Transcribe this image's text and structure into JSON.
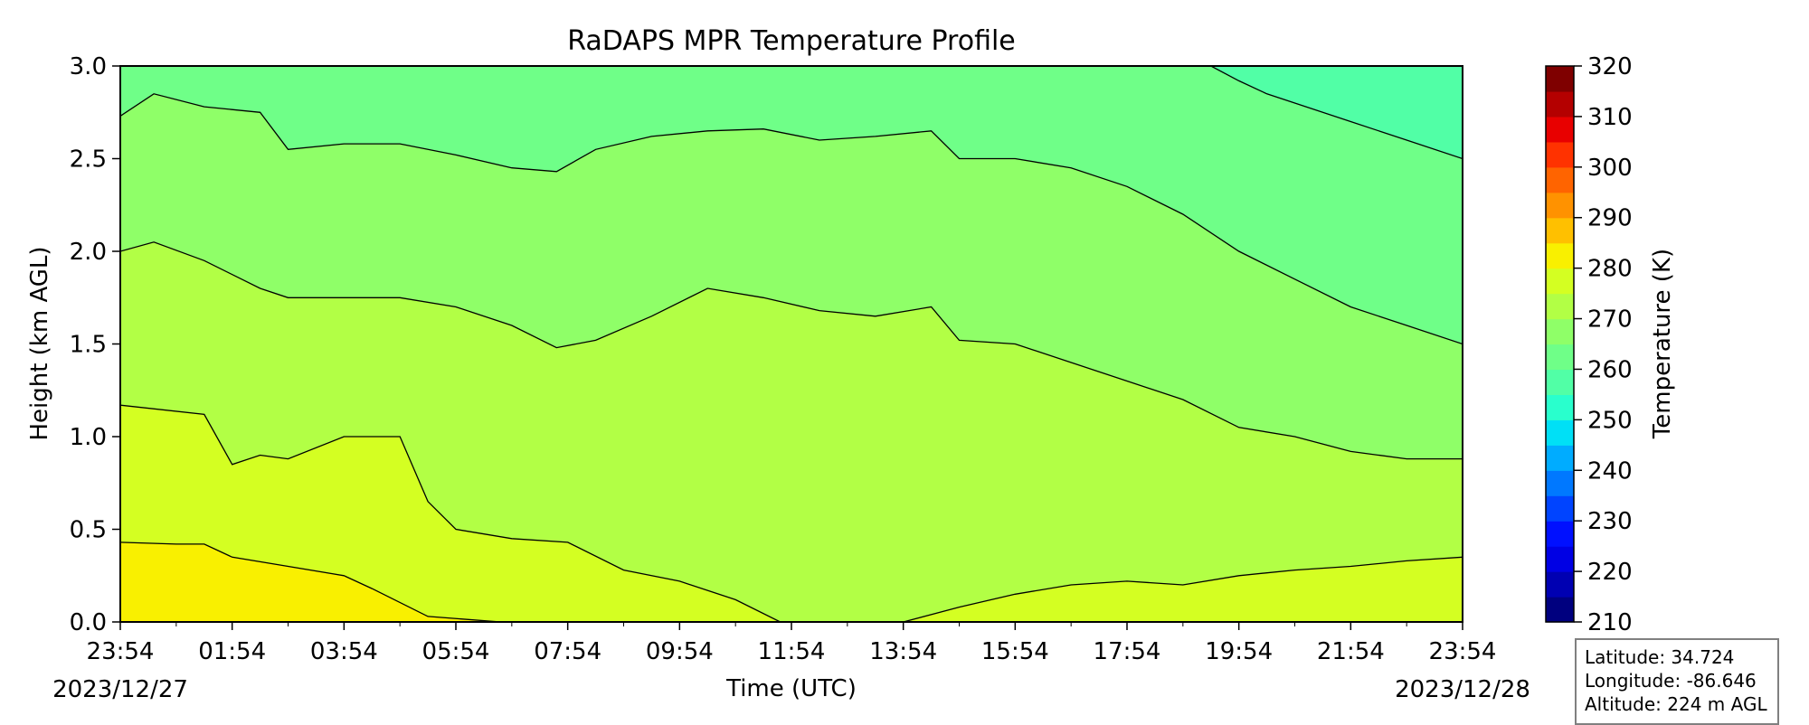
{
  "chart_data": {
    "type": "heatmap",
    "title": "RaDAPS MPR Temperature Profile",
    "xlabel": "Time (UTC)",
    "ylabel": "Height (km AGL)",
    "colorbar_label": "Temperature (K)",
    "x_ticks": [
      "23:54",
      "01:54",
      "03:54",
      "05:54",
      "07:54",
      "09:54",
      "11:54",
      "13:54",
      "15:54",
      "17:54",
      "19:54",
      "21:54",
      "23:54"
    ],
    "x_tick_hours": [
      0,
      2,
      4,
      6,
      8,
      10,
      12,
      14,
      16,
      18,
      20,
      22,
      24
    ],
    "date_start": "2023/12/27",
    "date_end": "2023/12/28",
    "ylim": [
      0,
      3.0
    ],
    "y_ticks": [
      0.0,
      0.5,
      1.0,
      1.5,
      2.0,
      2.5,
      3.0
    ],
    "y_tick_labels": [
      "0.0",
      "0.5",
      "1.0",
      "1.5",
      "2.0",
      "2.5",
      "3.0"
    ],
    "colorbar_range": [
      210,
      320
    ],
    "colorbar_ticks": [
      210,
      220,
      230,
      240,
      250,
      260,
      270,
      280,
      290,
      300,
      310,
      320
    ],
    "colorbar_tick_labels": [
      "210",
      "220",
      "230",
      "240",
      "250",
      "260",
      "270",
      "280",
      "290",
      "300",
      "310",
      "320"
    ],
    "colorbar_levels": [
      210,
      215,
      220,
      225,
      230,
      235,
      240,
      245,
      250,
      255,
      260,
      265,
      270,
      275,
      280,
      285,
      290,
      295,
      300,
      305,
      310,
      315,
      320
    ],
    "colorbar_colors": [
      "#00007f",
      "#0000b2",
      "#0000e4",
      "#0010ff",
      "#0044ff",
      "#0078ff",
      "#00acff",
      "#00e0f6",
      "#29ffcd",
      "#51ffa6",
      "#6fff88",
      "#8fff68",
      "#b2ff45",
      "#d4ff22",
      "#f9f000",
      "#ffc000",
      "#ff9200",
      "#ff6400",
      "#ff3200",
      "#e80000",
      "#b40000",
      "#7f0000"
    ],
    "contour_levels_shown": [
      255,
      260,
      265,
      270,
      275,
      280
    ],
    "contours": [
      {
        "level": 265,
        "hours": [
          0,
          0.6,
          1.5,
          2.5,
          3.0,
          4.0,
          5.0,
          6.0,
          7.0,
          7.8,
          8.5,
          9.5,
          10.5,
          11.5,
          12.5,
          13.5,
          14.5,
          15.0,
          16.0,
          17.0,
          18.0,
          19.0,
          20.0,
          21.0,
          22.0,
          23.0,
          24.0
        ],
        "heights_km": [
          2.73,
          2.85,
          2.78,
          2.75,
          2.55,
          2.58,
          2.58,
          2.52,
          2.45,
          2.43,
          2.55,
          2.62,
          2.65,
          2.66,
          2.6,
          2.62,
          2.65,
          2.5,
          2.5,
          2.45,
          2.35,
          2.2,
          2.0,
          1.85,
          1.7,
          1.6,
          1.5
        ]
      },
      {
        "level": 270,
        "hours": [
          0,
          0.6,
          1.5,
          2.5,
          3.0,
          4.0,
          5.0,
          6.0,
          7.0,
          7.8,
          8.5,
          9.5,
          10.5,
          11.5,
          12.5,
          13.5,
          14.5,
          15.0,
          16.0,
          17.0,
          18.0,
          19.0,
          20.0,
          21.0,
          22.0,
          23.0,
          24.0
        ],
        "heights_km": [
          2.0,
          2.05,
          1.95,
          1.8,
          1.75,
          1.75,
          1.75,
          1.7,
          1.6,
          1.48,
          1.52,
          1.65,
          1.8,
          1.75,
          1.68,
          1.65,
          1.7,
          1.52,
          1.5,
          1.4,
          1.3,
          1.2,
          1.05,
          1.0,
          0.92,
          0.88,
          0.88
        ]
      },
      {
        "level": 275,
        "hours": [
          0,
          1.5,
          2.0,
          2.5,
          3.0,
          4.0,
          5.0,
          5.5,
          6.0,
          7.0,
          8.0,
          9.0,
          10.0,
          11.0,
          11.8
        ],
        "heights_km": [
          1.17,
          1.12,
          0.85,
          0.9,
          0.88,
          1.0,
          1.0,
          0.65,
          0.5,
          0.45,
          0.43,
          0.28,
          0.22,
          0.12,
          0.0
        ]
      },
      {
        "level": 275,
        "hours": [
          14.0,
          15.0,
          16.0,
          17.0,
          18.0,
          19.0,
          20.0,
          21.0,
          22.0,
          23.0,
          24.0
        ],
        "heights_km": [
          0.0,
          0.08,
          0.15,
          0.2,
          0.22,
          0.2,
          0.25,
          0.28,
          0.3,
          0.33,
          0.35
        ]
      },
      {
        "level": 280,
        "hours": [
          0,
          1.0,
          1.5,
          2.0,
          3.0,
          4.0,
          4.5,
          5.5,
          6.8
        ],
        "heights_km": [
          0.43,
          0.42,
          0.42,
          0.35,
          0.3,
          0.25,
          0.18,
          0.03,
          0.0
        ]
      },
      {
        "level": 260,
        "hours": [
          19.5,
          20.0,
          20.5,
          21.0,
          22.0,
          23.0,
          24.0
        ],
        "heights_km": [
          3.0,
          2.92,
          2.85,
          2.8,
          2.7,
          2.6,
          2.5
        ]
      }
    ]
  },
  "info_box": {
    "latitude": "Latitude: 34.724",
    "longitude": "Longitude: -86.646",
    "altitude": "Altitude: 224 m AGL"
  }
}
